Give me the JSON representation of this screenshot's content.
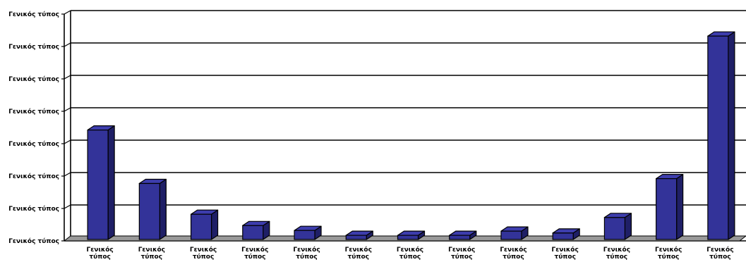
{
  "chart_data": {
    "type": "bar",
    "style": "3d-column",
    "categories": [
      "Γενικός τύπος",
      "Γενικός τύπος",
      "Γενικός τύπος",
      "Γενικός τύπος",
      "Γενικός τύπος",
      "Γενικός τύπος",
      "Γενικός τύπος",
      "Γενικός τύπος",
      "Γενικός τύπος",
      "Γενικός τύπος",
      "Γενικός τύπος",
      "Γενικός τύπος",
      "Γενικός τύπος"
    ],
    "values": [
      3.4,
      1.75,
      0.8,
      0.45,
      0.3,
      0.15,
      0.15,
      0.15,
      0.28,
      0.22,
      0.7,
      1.9,
      6.3
    ],
    "ylim": [
      0,
      7
    ],
    "y_tick_labels": [
      "Γενικός τύπος",
      "Γενικός τύπος",
      "Γενικός τύπος",
      "Γενικός τύπος",
      "Γενικός τύπος",
      "Γενικός τύπος",
      "Γενικός τύπος",
      "Γενικός τύπος"
    ],
    "grid": true,
    "title": "",
    "xlabel": "",
    "ylabel": "",
    "colors": {
      "bar_front": "#333399",
      "bar_top": "#3d3dad",
      "bar_side": "#1f1f66",
      "outline": "#000000",
      "floor": "#999999",
      "grid": "#000000"
    }
  }
}
